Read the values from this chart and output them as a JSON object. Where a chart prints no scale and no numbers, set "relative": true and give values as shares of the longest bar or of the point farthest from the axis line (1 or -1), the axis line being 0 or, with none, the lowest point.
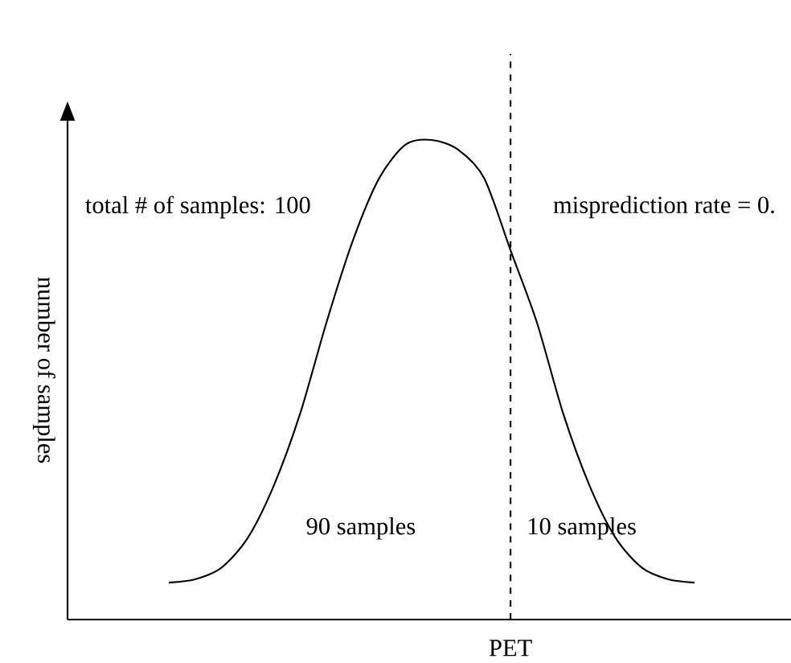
{
  "chart_data": {
    "type": "line",
    "relative": true,
    "ylabel": "number of samples",
    "xlabel": "PET",
    "categories": [
      null,
      null,
      null,
      null,
      null,
      null,
      null,
      null,
      null,
      null,
      null,
      null,
      null,
      null,
      null,
      null,
      null,
      null,
      null,
      null,
      null
    ],
    "series": [
      {
        "color": "#000000",
        "values": [
          0.077,
          0.084,
          0.108,
          0.17,
          0.28,
          0.43,
          0.62,
          0.79,
          0.92,
          0.99,
          1.0,
          0.98,
          0.92,
          0.77,
          0.62,
          0.43,
          0.28,
          0.17,
          0.108,
          0.084,
          0.077
        ]
      }
    ],
    "annotations": [
      "total # of samples: 100",
      "misprediction rate = 0.",
      "90 samples",
      "10 samples"
    ]
  }
}
